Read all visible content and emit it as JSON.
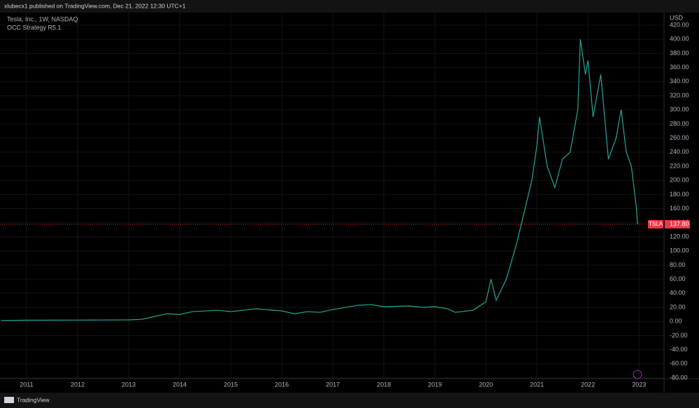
{
  "header": "xlubecx1 published on TradingView.com, Dec 21, 2022 12:30 UTC+1",
  "footer": "TradingView",
  "chart_data": {
    "type": "line",
    "title": "Tesla, Inc., 1W, NASDAQ",
    "subtitle": "OCC Strategy R5.1",
    "y_axis_label": "USD",
    "x": [
      2010.5,
      2011,
      2011.5,
      2012,
      2012.5,
      2013,
      2013.25,
      2013.5,
      2013.75,
      2014,
      2014.25,
      2014.5,
      2014.75,
      2015,
      2015.5,
      2016,
      2016.25,
      2016.5,
      2016.75,
      2017,
      2017.5,
      2017.75,
      2018,
      2018.5,
      2018.75,
      2019,
      2019.25,
      2019.4,
      2019.75,
      2020,
      2020.1,
      2020.2,
      2020.4,
      2020.6,
      2020.7,
      2020.9,
      2021,
      2021.05,
      2021.2,
      2021.35,
      2021.5,
      2021.65,
      2021.8,
      2021.85,
      2021.95,
      2022,
      2022.1,
      2022.25,
      2022.4,
      2022.55,
      2022.65,
      2022.75,
      2022.85,
      2022.95,
      2022.97
    ],
    "series": [
      {
        "name": "TSLA",
        "color": "#26a69a",
        "values": [
          1.5,
          1.8,
          1.9,
          2,
          2.1,
          2.3,
          3,
          7,
          11,
          10,
          14,
          15,
          16,
          14,
          18,
          15,
          11,
          14,
          13,
          17,
          23,
          24,
          21,
          22,
          20,
          21,
          18,
          13,
          16,
          28,
          60,
          30,
          60,
          110,
          140,
          200,
          250,
          290,
          220,
          190,
          230,
          240,
          300,
          400,
          350,
          370,
          290,
          350,
          230,
          260,
          300,
          240,
          220,
          160,
          137.8
        ]
      }
    ],
    "last_price": {
      "value": 137.8,
      "label": "137.80"
    },
    "last_price_color": "#f23645",
    "xlim": [
      2010.48,
      2023.49
    ],
    "xticks": [
      2011,
      2012,
      2013,
      2014,
      2015,
      2016,
      2017,
      2018,
      2019,
      2020,
      2021,
      2022,
      2023
    ],
    "ylim": [
      -80,
      420
    ],
    "yticks": [
      {
        "value": -80,
        "label": "-80.00"
      },
      {
        "value": -60,
        "label": "-60.00"
      },
      {
        "value": -40,
        "label": "-40.00"
      },
      {
        "value": -20,
        "label": "-20.00"
      },
      {
        "value": 0,
        "label": "0.00"
      },
      {
        "value": 20,
        "label": "20.00"
      },
      {
        "value": 40,
        "label": "40.00"
      },
      {
        "value": 60,
        "label": "60.00"
      },
      {
        "value": 80,
        "label": "80.00"
      },
      {
        "value": 100,
        "label": "100.00"
      },
      {
        "value": 120,
        "label": "120.00"
      },
      {
        "value": 140,
        "label": "140.00"
      },
      {
        "value": 160,
        "label": "160.00"
      },
      {
        "value": 180,
        "label": "180.00"
      },
      {
        "value": 200,
        "label": "200.00"
      },
      {
        "value": 220,
        "label": "220.00"
      },
      {
        "value": 240,
        "label": "240.00"
      },
      {
        "value": 260,
        "label": "260.00"
      },
      {
        "value": 280,
        "label": "280.00"
      },
      {
        "value": 300,
        "label": "300.00"
      },
      {
        "value": 320,
        "label": "320.00"
      },
      {
        "value": 340,
        "label": "340.00"
      },
      {
        "value": 360,
        "label": "360.00"
      },
      {
        "value": 380,
        "label": "380.00"
      },
      {
        "value": 400,
        "label": "400.00"
      },
      {
        "value": 420,
        "label": "420.00"
      }
    ],
    "grid": true
  }
}
